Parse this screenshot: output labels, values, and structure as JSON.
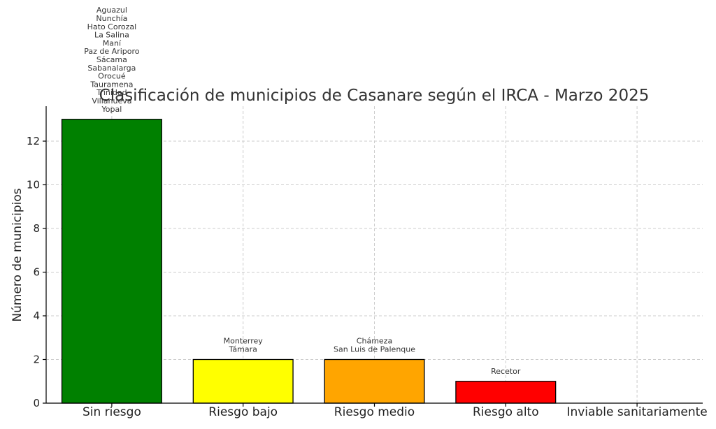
{
  "chart_data": {
    "type": "bar",
    "title": "Clasificación de municipios de Casanare según el IRCA - Marzo 2025",
    "xlabel": "",
    "ylabel": "Número de municipios",
    "ylim": [
      0,
      13.6
    ],
    "yticks": [
      0,
      2,
      4,
      6,
      8,
      10,
      12
    ],
    "grid": true,
    "categories": [
      "Sin riesgo",
      "Riesgo bajo",
      "Riesgo medio",
      "Riesgo alto",
      "Inviable sanitariamente"
    ],
    "values": [
      13,
      2,
      2,
      1,
      0
    ],
    "colors": [
      "#008000",
      "#ffff00",
      "#ffa500",
      "#ff0000",
      "#800080"
    ],
    "bar_labels": [
      [
        "Aguazul",
        "Nunchía",
        "Hato Corozal",
        "La Salina",
        "Maní",
        "Paz de Ariporo",
        "Sácama",
        "Sabanalarga",
        "Orocué",
        "Tauramena",
        "Trinidad",
        "Villanueva",
        "Yopal"
      ],
      [
        "Monterrey",
        "Támara"
      ],
      [
        "Chámeza",
        "San Luis de Palenque"
      ],
      [
        "Recetor"
      ],
      []
    ]
  }
}
